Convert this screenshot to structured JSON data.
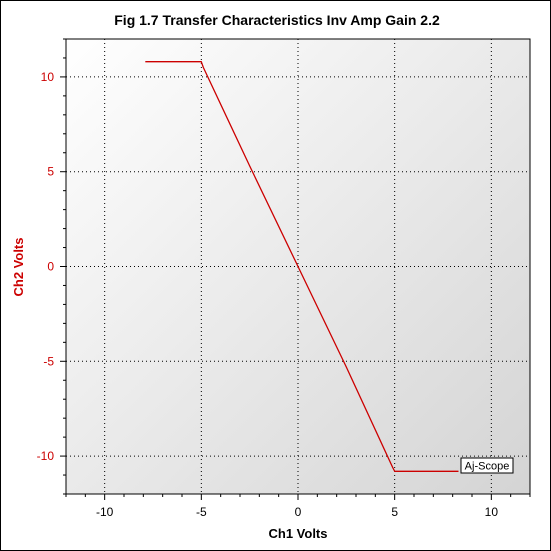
{
  "chart_data": {
    "type": "line",
    "title": "Fig 1.7 Transfer Characteristics Inv Amp Gain 2.2",
    "xlabel": "Ch1 Volts",
    "ylabel": "Ch2 Volts",
    "xlim": [
      -12,
      12
    ],
    "ylim": [
      -12,
      12
    ],
    "xticks": [
      -10,
      -5,
      0,
      5,
      10
    ],
    "yticks": [
      10,
      5,
      0,
      -5,
      -10
    ],
    "grid": true,
    "series": [
      {
        "color": "#cc0000",
        "x": [
          -7.9,
          -5.0,
          -4.9,
          -2.5,
          0.0,
          2.5,
          4.9,
          5.0,
          8.3
        ],
        "y": [
          10.8,
          10.8,
          10.5,
          5.3,
          0.0,
          -5.3,
          -10.6,
          -10.8,
          -10.8
        ]
      }
    ],
    "watermark": "Aj-Scope"
  }
}
